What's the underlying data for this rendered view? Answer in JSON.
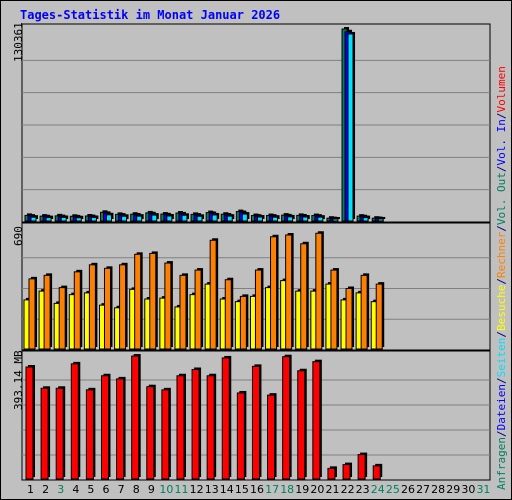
{
  "title": "Tages-Statistik im Monat Januar 2026",
  "panels": {
    "requests_max_label": "130361",
    "visits_max_label": "690",
    "volume_max_label": "393.14 MB"
  },
  "legend": [
    {
      "text": "Anfragen",
      "color": "#00805C"
    },
    {
      "text": "/",
      "color": "#000080"
    },
    {
      "text": "Dateien",
      "color": "#0000FF"
    },
    {
      "text": "/",
      "color": "#000080"
    },
    {
      "text": "Seiten",
      "color": "#00E0FF"
    },
    {
      "text": "/",
      "color": "#000080"
    },
    {
      "text": "Besuche",
      "color": "#FFFF00"
    },
    {
      "text": "/",
      "color": "#000080"
    },
    {
      "text": "Rechner",
      "color": "#FF8000"
    },
    {
      "text": "/",
      "color": "#000080"
    },
    {
      "text": "Vol. Out",
      "color": "#00805C"
    },
    {
      "text": "/",
      "color": "#000080"
    },
    {
      "text": "Vol. In",
      "color": "#0000FF"
    },
    {
      "text": "/",
      "color": "#000080"
    },
    {
      "text": "Volumen",
      "color": "#FF0000"
    }
  ],
  "chart_data": [
    {
      "type": "bar",
      "name": "requests",
      "ylim": [
        0,
        130361
      ],
      "categories": [
        "1",
        "2",
        "3",
        "4",
        "5",
        "6",
        "7",
        "8",
        "9",
        "10",
        "11",
        "12",
        "13",
        "14",
        "15",
        "16",
        "17",
        "18",
        "19",
        "20",
        "21",
        "22",
        "23",
        "24",
        "25",
        "26",
        "27",
        "28",
        "29",
        "30",
        "31"
      ],
      "series": [
        {
          "name": "Anfragen",
          "color": "#00805C",
          "values": [
            3800,
            3300,
            3500,
            3200,
            3400,
            5900,
            4500,
            4600,
            5500,
            4700,
            5400,
            4500,
            5700,
            4600,
            6400,
            3700,
            3700,
            4000,
            3800,
            3700,
            1900,
            130361,
            3300,
            1900,
            0,
            0,
            0,
            0,
            0,
            0,
            0
          ]
        },
        {
          "name": "Dateien",
          "color": "#0000FF",
          "values": [
            3300,
            2900,
            3000,
            2800,
            3000,
            5200,
            4000,
            4100,
            4900,
            4200,
            4800,
            4000,
            5100,
            4100,
            5700,
            3300,
            3300,
            3500,
            3400,
            3300,
            1600,
            128500,
            2900,
            1700,
            0,
            0,
            0,
            0,
            0,
            0,
            0
          ]
        },
        {
          "name": "Seiten",
          "color": "#00E0FF",
          "values": [
            2600,
            2300,
            2400,
            2200,
            2400,
            4200,
            3200,
            3300,
            4000,
            3400,
            3900,
            3200,
            4100,
            3300,
            4700,
            2700,
            2600,
            2800,
            2700,
            2600,
            1300,
            127000,
            2300,
            1400,
            0,
            0,
            0,
            0,
            0,
            0,
            0
          ]
        }
      ]
    },
    {
      "type": "bar",
      "name": "visits",
      "ylim": [
        0,
        690
      ],
      "categories": [
        "1",
        "2",
        "3",
        "4",
        "5",
        "6",
        "7",
        "8",
        "9",
        "10",
        "11",
        "12",
        "13",
        "14",
        "15",
        "16",
        "17",
        "18",
        "19",
        "20",
        "21",
        "22",
        "23",
        "24",
        "25",
        "26",
        "27",
        "28",
        "29",
        "30",
        "31"
      ],
      "series": [
        {
          "name": "Besuche",
          "color": "#FFFF00",
          "values": [
            280,
            330,
            260,
            310,
            320,
            250,
            235,
            340,
            285,
            290,
            240,
            310,
            370,
            285,
            270,
            300,
            350,
            390,
            330,
            330,
            370,
            280,
            320,
            270,
            0,
            0,
            0,
            0,
            0,
            0,
            0
          ]
        },
        {
          "name": "Rechner",
          "color": "#FF8000",
          "values": [
            400,
            420,
            350,
            440,
            480,
            460,
            480,
            540,
            545,
            490,
            420,
            450,
            620,
            395,
            300,
            450,
            640,
            650,
            600,
            660,
            450,
            345,
            420,
            370,
            0,
            0,
            0,
            0,
            0,
            0,
            0
          ]
        }
      ]
    },
    {
      "type": "bar",
      "name": "volume",
      "ylim": [
        0,
        393.14
      ],
      "categories": [
        "1",
        "2",
        "3",
        "4",
        "5",
        "6",
        "7",
        "8",
        "9",
        "10",
        "11",
        "12",
        "13",
        "14",
        "15",
        "16",
        "17",
        "18",
        "19",
        "20",
        "21",
        "22",
        "23",
        "24",
        "25",
        "26",
        "27",
        "28",
        "29",
        "30",
        "31"
      ],
      "series": [
        {
          "name": "Volumen",
          "color": "#FF0000",
          "values": [
            358,
            290,
            290,
            368,
            285,
            330,
            320,
            393,
            295,
            285,
            330,
            350,
            330,
            387,
            275,
            360,
            268,
            391,
            346,
            375,
            34,
            46,
            78,
            42,
            0,
            0,
            0,
            0,
            0,
            0,
            0
          ]
        }
      ]
    }
  ],
  "weekend_days": [
    3,
    10,
    11,
    17,
    18,
    24,
    25,
    31
  ],
  "weekend_color": "#00805C",
  "weekday_color": "#000000"
}
